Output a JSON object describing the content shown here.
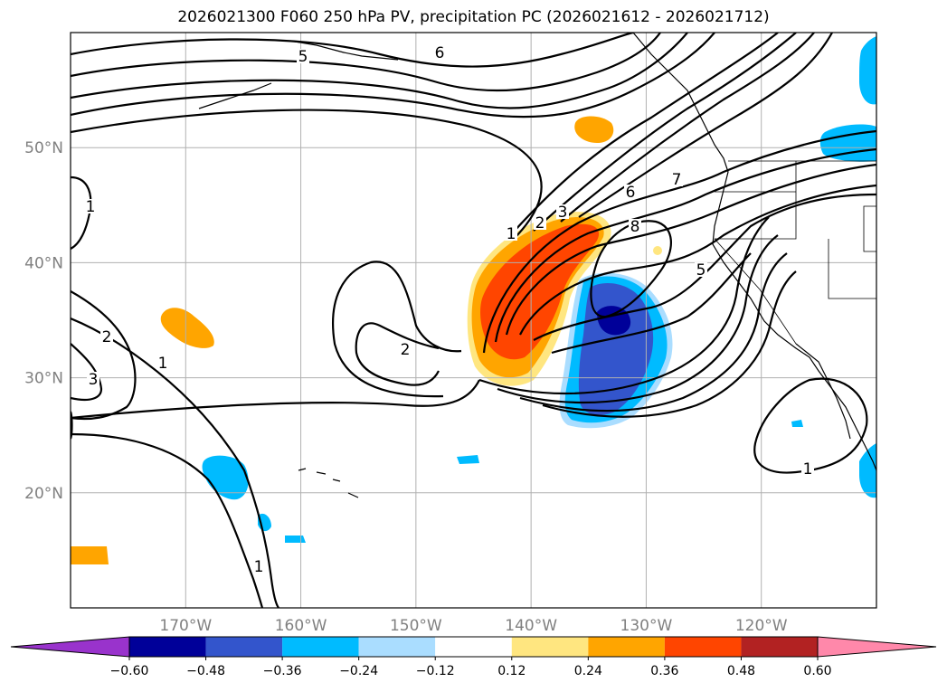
{
  "title": "2026021300 F060 250 hPa PV, precipitation PC (2026021612 - 2026021712)",
  "map": {
    "lon_range": [
      -180,
      -110
    ],
    "lat_range": [
      10,
      60
    ],
    "lat_labels": [
      "20°N",
      "30°N",
      "40°N",
      "50°N"
    ],
    "lat_values": [
      20,
      30,
      40,
      50
    ],
    "lon_labels": [
      "170°W",
      "160°W",
      "150°W",
      "140°W",
      "130°W",
      "120°W"
    ],
    "lon_values": [
      -170,
      -160,
      -150,
      -140,
      -130,
      -120
    ]
  },
  "pv_contour_labels": [
    "1",
    "1",
    "1",
    "1",
    "1",
    "2",
    "2",
    "2",
    "3",
    "3",
    "5",
    "5",
    "6",
    "6",
    "7",
    "8"
  ],
  "colorbar": {
    "levels": [
      "−0.60",
      "−0.48",
      "−0.36",
      "−0.24",
      "−0.12",
      "0.12",
      "0.24",
      "0.36",
      "0.48",
      "0.60"
    ],
    "colors": [
      "#9933cc",
      "#000099",
      "#3355cc",
      "#00bbff",
      "#aaddff",
      "#ffffff",
      "#ffe680",
      "#ffa500",
      "#ff4500",
      "#b22222",
      "#ff88aa"
    ]
  },
  "colors": {
    "strong_pos": "#ff4500",
    "pos": "#ffa500",
    "weak_pos": "#ffe680",
    "neg": "#00bbff",
    "weak_neg": "#aaddff",
    "mid_neg": "#3355cc",
    "strong_neg": "#000099"
  }
}
